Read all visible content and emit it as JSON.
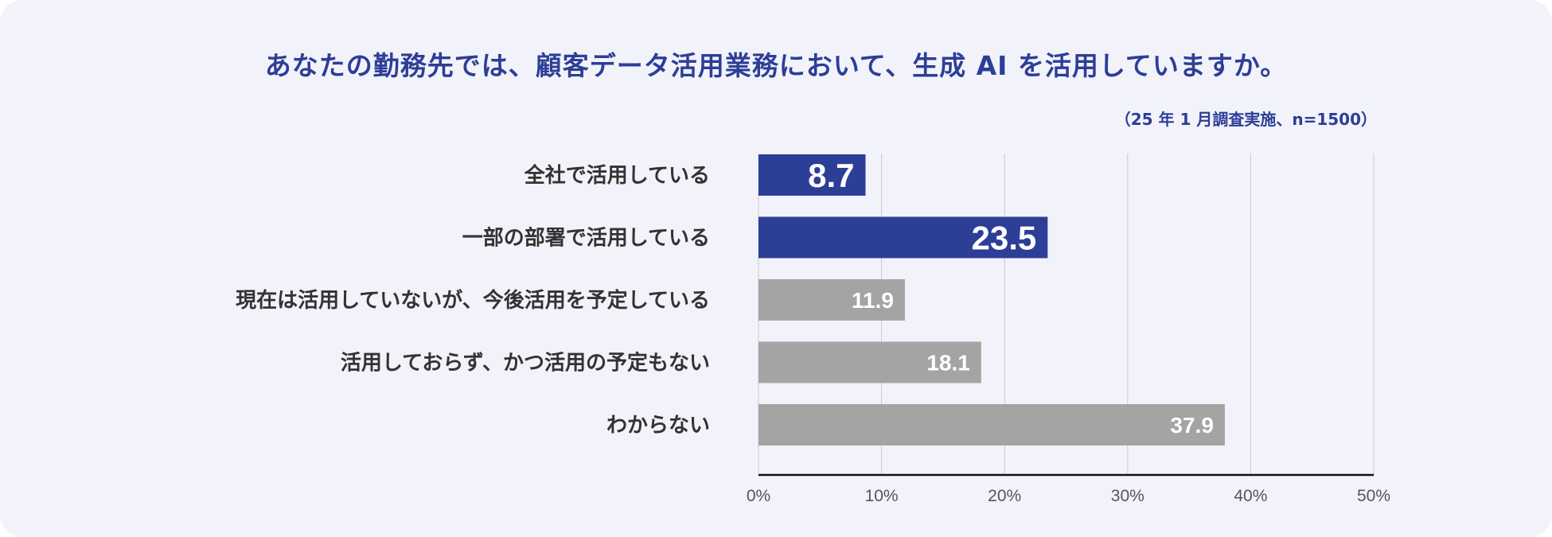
{
  "chart_data": {
    "type": "bar",
    "orientation": "horizontal",
    "title": "あなたの勤務先では、顧客データ活用業務において、生成 AI を活用していますか。",
    "note": "（25 年 1 月調査実施、n=1500）",
    "categories": [
      "全社で活用している",
      "一部の部署で活用している",
      "現在は活用していないが、今後活用を予定している",
      "活用しておらず、かつ活用の予定もない",
      "わからない"
    ],
    "values": [
      8.7,
      23.5,
      11.9,
      18.1,
      37.9
    ],
    "value_labels": [
      "8.7",
      "23.5",
      "11.9",
      "18.1",
      "37.9"
    ],
    "highlight": [
      true,
      true,
      false,
      false,
      false
    ],
    "xlim": [
      0,
      50
    ],
    "xticks": [
      "0%",
      "10%",
      "20%",
      "30%",
      "40%",
      "50%"
    ],
    "grid": true,
    "xlabel": "",
    "ylabel": "",
    "colors": {
      "highlight": "#2d3e97",
      "default": "#a4a4a4",
      "title": "#2d3e97",
      "background": "#f2f3fa"
    }
  }
}
